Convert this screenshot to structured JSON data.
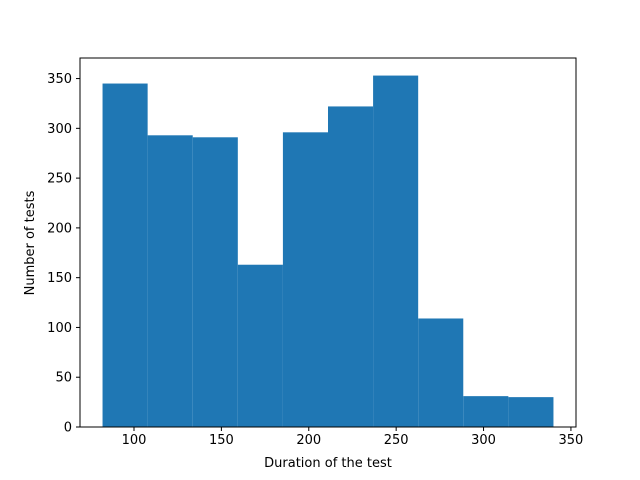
{
  "chart_data": {
    "type": "histogram",
    "bins": [
      82,
      107.8,
      133.6,
      159.4,
      185.2,
      211,
      236.8,
      262.6,
      288.4,
      314.2,
      340
    ],
    "values": [
      345,
      293,
      291,
      163,
      296,
      322,
      353,
      109,
      31,
      30
    ],
    "color": "#1f77b4",
    "x_label": "Duration of the test",
    "y_label": "Number of tests",
    "xlim": [
      69.1,
      352.9
    ],
    "xticks": [
      100,
      150,
      200,
      250,
      300,
      350
    ],
    "ylim": [
      0,
      370.65
    ],
    "yticks": [
      0,
      50,
      100,
      150,
      200,
      250,
      300,
      350
    ]
  }
}
